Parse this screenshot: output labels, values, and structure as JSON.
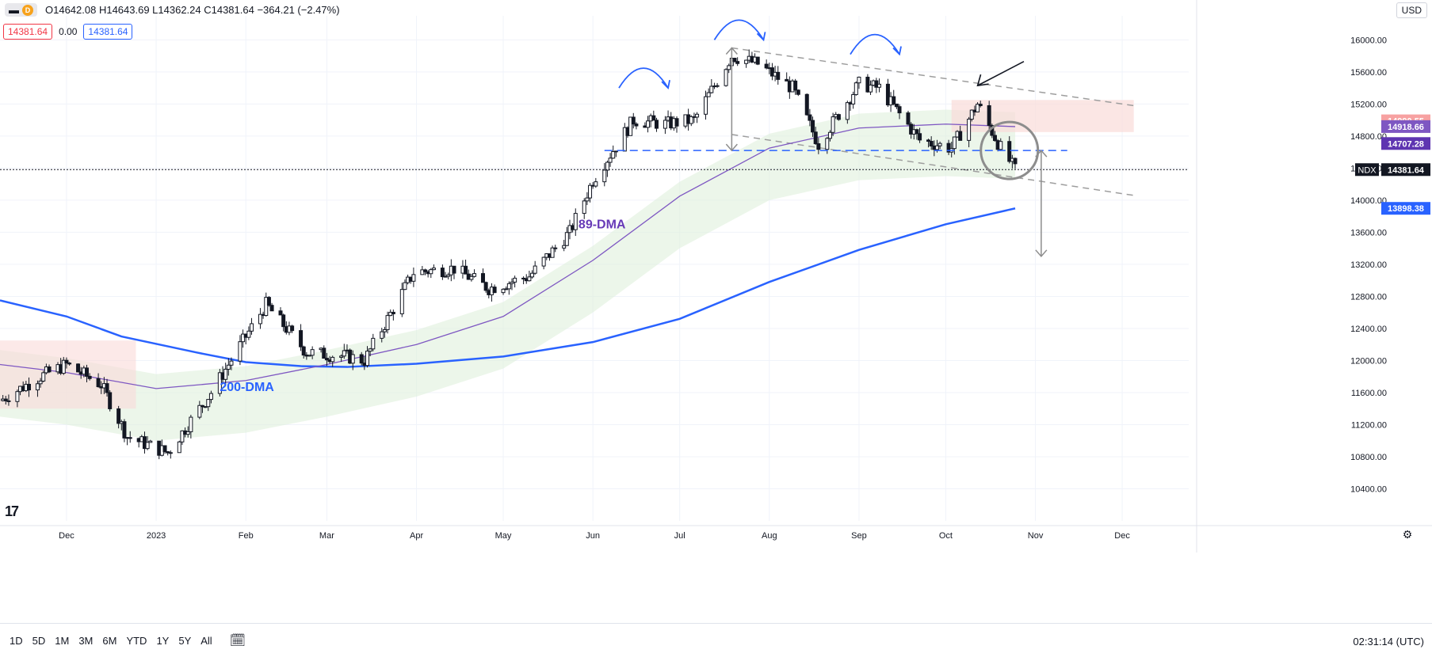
{
  "header": {
    "interval_chip": "D",
    "ohlc": "O14642.08 H14643.69 L14362.24 C14381.64 −364.21 (−2.47%)",
    "price_red": "14381.64",
    "change_zero": "0.00",
    "price_blue": "14381.64",
    "currency": "USD"
  },
  "footer": {
    "ranges": [
      "1D",
      "5D",
      "1M",
      "3M",
      "6M",
      "YTD",
      "1Y",
      "5Y",
      "All"
    ],
    "clock": "02:31:14 (UTC)"
  },
  "colors": {
    "up": "#ffffff",
    "down": "#131722",
    "dma200": "#2962ff",
    "dma89": "#7e57c2",
    "cloud_green": "#dff0dc",
    "cloud_red": "#fadbd9",
    "annotation": "#2962ff"
  },
  "chart_data": {
    "type": "line",
    "symbol": "NDX",
    "y_ticks": [
      10400,
      10800,
      11200,
      11600,
      12000,
      12400,
      12800,
      13200,
      13600,
      14000,
      14400,
      14800,
      15200,
      15600,
      16000
    ],
    "y_tick_labels": [
      "10400.00",
      "10800.00",
      "11200.00",
      "11600.00",
      "12000.00",
      "12400.00",
      "12800.00",
      "13200.00",
      "13600.00",
      "14000.00",
      "14400.00",
      "14800.00",
      "15200.00",
      "15600.00",
      "16000.00"
    ],
    "ylim": [
      10000,
      16300
    ],
    "x_labels": [
      "Dec",
      "2023",
      "Feb",
      "Mar",
      "Apr",
      "May",
      "Jun",
      "Jul",
      "Aug",
      "Sep",
      "Oct",
      "Nov",
      "Dec"
    ],
    "x_label_dates": [
      "2022-12-01",
      "2023-01-01",
      "2023-02-01",
      "2023-03-01",
      "2023-04-01",
      "2023-05-01",
      "2023-06-01",
      "2023-07-01",
      "2023-08-01",
      "2023-09-01",
      "2023-10-01",
      "2023-11-01",
      "2023-12-01"
    ],
    "xlim": [
      "2022-11-08",
      "2023-12-24"
    ],
    "close": {
      "dates": [
        "2022-11-08",
        "2022-11-22",
        "2022-12-01",
        "2022-12-13",
        "2022-12-22",
        "2023-01-05",
        "2023-01-20",
        "2023-02-01",
        "2023-02-08",
        "2023-02-22",
        "2023-03-08",
        "2023-03-14",
        "2023-03-31",
        "2023-04-14",
        "2023-04-26",
        "2023-05-10",
        "2023-05-24",
        "2023-06-01",
        "2023-06-15",
        "2023-06-26",
        "2023-07-06",
        "2023-07-19",
        "2023-07-28",
        "2023-08-09",
        "2023-08-18",
        "2023-09-01",
        "2023-09-08",
        "2023-09-22",
        "2023-10-03",
        "2023-10-12",
        "2023-10-20",
        "2023-10-25"
      ],
      "values": [
        11500,
        11800,
        11950,
        11700,
        11050,
        10850,
        11600,
        12300,
        12700,
        12100,
        12050,
        12000,
        13100,
        13150,
        12900,
        13050,
        13600,
        14250,
        15000,
        14950,
        15000,
        15800,
        15700,
        15400,
        14700,
        15450,
        15400,
        14750,
        14650,
        15200,
        14650,
        14380
      ]
    },
    "series": [
      {
        "name": "200-DMA",
        "dates": [
          "2022-11-08",
          "2022-12-01",
          "2022-12-20",
          "2023-01-15",
          "2023-02-01",
          "2023-02-20",
          "2023-03-08",
          "2023-04-01",
          "2023-05-01",
          "2023-06-01",
          "2023-07-01",
          "2023-08-01",
          "2023-09-01",
          "2023-10-01",
          "2023-10-25"
        ],
        "values": [
          12750,
          12550,
          12300,
          12100,
          11980,
          11930,
          11920,
          11960,
          12050,
          12230,
          12520,
          12980,
          13380,
          13700,
          13898
        ]
      },
      {
        "name": "89-DMA",
        "dates": [
          "2022-11-08",
          "2022-12-01",
          "2023-01-01",
          "2023-02-01",
          "2023-03-01",
          "2023-04-01",
          "2023-05-01",
          "2023-06-01",
          "2023-07-01",
          "2023-08-01",
          "2023-09-01",
          "2023-10-01",
          "2023-10-25"
        ],
        "values": [
          11950,
          11850,
          11650,
          11750,
          11950,
          12200,
          12550,
          13250,
          14050,
          14650,
          14900,
          14950,
          14918
        ]
      }
    ],
    "price_tags": [
      {
        "value": 14990.55,
        "label": "14990.55",
        "color": "#f7a1a1"
      },
      {
        "value": 14918.66,
        "label": "14918.66",
        "color": "#7e57c2"
      },
      {
        "value": 14707.28,
        "label": "14707.28",
        "color": "#5e35b1"
      },
      {
        "value": 14381.64,
        "label": "14381.64",
        "color": "#131722",
        "symbol": "NDX"
      },
      {
        "value": 13898.38,
        "label": "13898.38",
        "color": "#2962ff"
      }
    ],
    "annotations": {
      "label_89": "89-DMA",
      "label_200": "200-DMA",
      "support_level": 14620,
      "channel_upper": [
        [
          "2023-07-19",
          15900
        ],
        [
          "2023-12-05",
          15180
        ]
      ],
      "channel_lower": [
        [
          "2023-07-19",
          14820
        ],
        [
          "2023-12-05",
          14060
        ]
      ]
    }
  }
}
